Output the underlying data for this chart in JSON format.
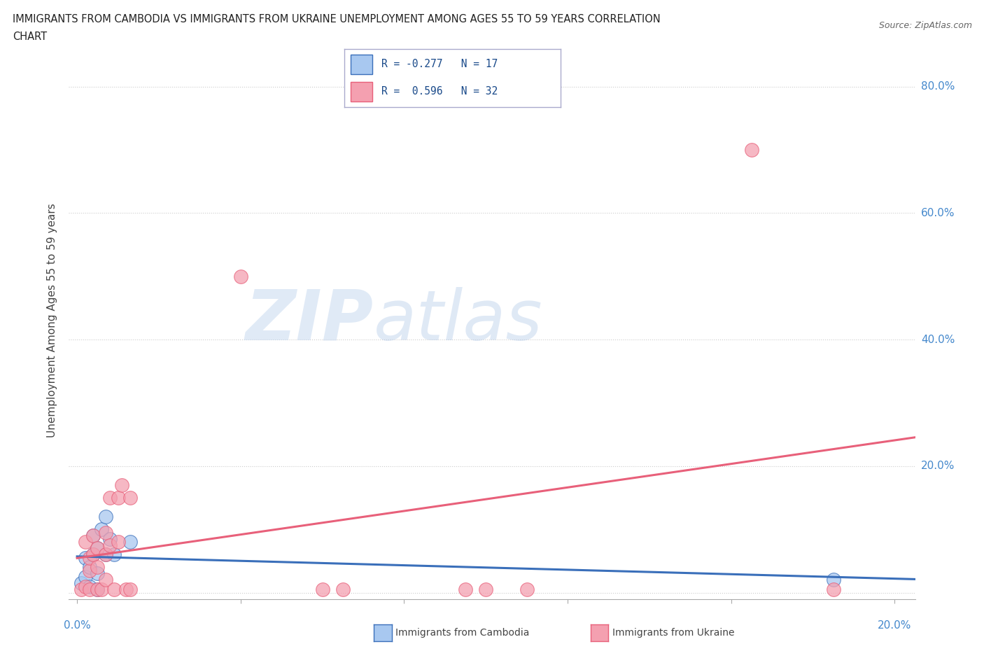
{
  "title_line1": "IMMIGRANTS FROM CAMBODIA VS IMMIGRANTS FROM UKRAINE UNEMPLOYMENT AMONG AGES 55 TO 59 YEARS CORRELATION",
  "title_line2": "CHART",
  "source": "Source: ZipAtlas.com",
  "ylabel": "Unemployment Among Ages 55 to 59 years",
  "xlim": [
    -0.002,
    0.205
  ],
  "ylim": [
    -0.01,
    0.87
  ],
  "yticks": [
    0.0,
    0.2,
    0.4,
    0.6,
    0.8
  ],
  "yticklabels": [
    "",
    "20.0%",
    "40.0%",
    "60.0%",
    "80.0%"
  ],
  "xtick_positions": [
    0.0,
    0.04,
    0.08,
    0.12,
    0.16,
    0.2
  ],
  "legend1_label": "R = -0.277   N = 17",
  "legend2_label": "R =  0.596   N = 32",
  "legend_bottom1": "Immigrants from Cambodia",
  "legend_bottom2": "Immigrants from Ukraine",
  "watermark_zip": "ZIP",
  "watermark_atlas": "atlas",
  "background_color": "#ffffff",
  "grid_color": "#cccccc",
  "scatter_cambodia_color": "#a8c8f0",
  "scatter_ukraine_color": "#f4a0b0",
  "line_cambodia_color": "#3a6fba",
  "line_ukraine_color": "#e8607a",
  "cambodia_x": [
    0.001,
    0.002,
    0.002,
    0.003,
    0.003,
    0.004,
    0.004,
    0.005,
    0.005,
    0.005,
    0.006,
    0.007,
    0.007,
    0.008,
    0.009,
    0.013,
    0.185
  ],
  "cambodia_y": [
    0.015,
    0.025,
    0.055,
    0.01,
    0.04,
    0.06,
    0.09,
    0.005,
    0.03,
    0.07,
    0.1,
    0.06,
    0.12,
    0.085,
    0.06,
    0.08,
    0.02
  ],
  "ukraine_x": [
    0.001,
    0.002,
    0.002,
    0.003,
    0.003,
    0.003,
    0.004,
    0.004,
    0.005,
    0.005,
    0.005,
    0.006,
    0.007,
    0.007,
    0.007,
    0.008,
    0.008,
    0.009,
    0.01,
    0.01,
    0.011,
    0.012,
    0.013,
    0.013,
    0.04,
    0.06,
    0.065,
    0.095,
    0.1,
    0.11,
    0.165,
    0.185
  ],
  "ukraine_y": [
    0.005,
    0.01,
    0.08,
    0.005,
    0.035,
    0.055,
    0.06,
    0.09,
    0.005,
    0.04,
    0.07,
    0.005,
    0.02,
    0.06,
    0.095,
    0.075,
    0.15,
    0.005,
    0.08,
    0.15,
    0.17,
    0.005,
    0.15,
    0.005,
    0.5,
    0.005,
    0.005,
    0.005,
    0.005,
    0.005,
    0.7,
    0.005
  ]
}
